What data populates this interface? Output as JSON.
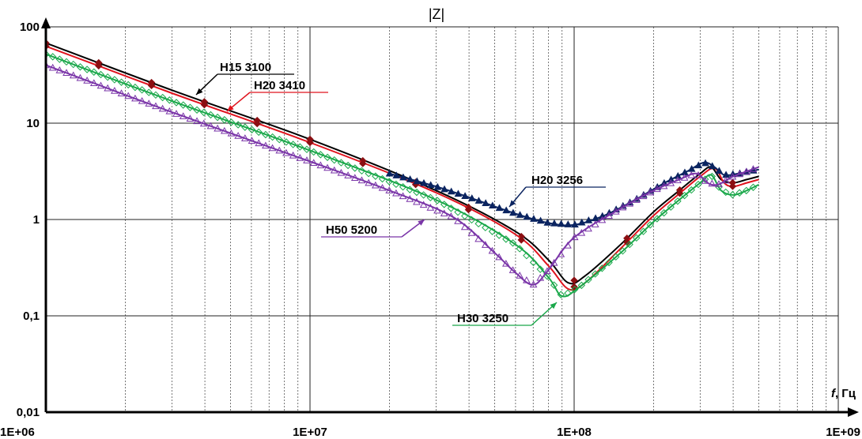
{
  "chart_data": {
    "type": "line",
    "title": "|Z|",
    "xlabel_italic": "f",
    "xlabel_rest": ", Гц",
    "ylabel": "",
    "x_scale": "log",
    "y_scale": "log",
    "xlim": [
      1000000,
      1000000000
    ],
    "ylim": [
      0.01,
      100
    ],
    "x_ticks": [
      {
        "value": 1000000,
        "label": "1E+06"
      },
      {
        "value": 10000000,
        "label": "1E+07"
      },
      {
        "value": 100000000,
        "label": "1E+08"
      },
      {
        "value": 1000000000,
        "label": "1E+09"
      }
    ],
    "y_ticks": [
      {
        "value": 0.01,
        "label": "0,01"
      },
      {
        "value": 0.1,
        "label": "0,1"
      },
      {
        "value": 1,
        "label": "1"
      },
      {
        "value": 10,
        "label": "10"
      },
      {
        "value": 100,
        "label": "100"
      }
    ],
    "grid": true,
    "series": [
      {
        "name": "H15 3100",
        "color": "#000000",
        "marker": "none",
        "x": [
          1000000,
          3000000,
          10000000,
          30000000,
          60000000,
          80000000,
          95000000,
          110000000,
          150000000,
          200000000,
          250000000,
          300000000,
          330000000,
          360000000,
          400000000,
          450000000,
          500000000
        ],
        "y": [
          68,
          22,
          6.8,
          2.0,
          0.75,
          0.38,
          0.22,
          0.26,
          0.55,
          1.2,
          2.0,
          3.0,
          3.5,
          2.6,
          2.4,
          2.6,
          2.8
        ]
      },
      {
        "name": "H20 3410",
        "color": "#e0141e",
        "marker": "none",
        "x": [
          1000000,
          3000000,
          10000000,
          30000000,
          60000000,
          80000000,
          95000000,
          110000000,
          150000000,
          200000000,
          250000000,
          300000000,
          340000000,
          370000000,
          400000000,
          450000000,
          500000000
        ],
        "y": [
          63,
          20.5,
          6.3,
          1.9,
          0.7,
          0.33,
          0.19,
          0.22,
          0.5,
          1.1,
          1.85,
          2.8,
          3.4,
          2.4,
          2.2,
          2.4,
          2.6
        ]
      },
      {
        "name": "H30 3250",
        "color": "#1aa84a",
        "marker": "diamond",
        "x": [
          1000000,
          3000000,
          10000000,
          30000000,
          60000000,
          80000000,
          90000000,
          105000000,
          150000000,
          200000000,
          250000000,
          300000000,
          330000000,
          360000000,
          400000000,
          450000000,
          500000000
        ],
        "y": [
          52,
          17,
          5.2,
          1.6,
          0.55,
          0.25,
          0.16,
          0.2,
          0.45,
          0.95,
          1.6,
          2.4,
          2.9,
          2.0,
          1.8,
          2.0,
          2.3
        ]
      },
      {
        "name": "H20 3256",
        "color": "#0b2460",
        "marker": "triangle",
        "x": [
          20000000,
          30000000,
          40000000,
          60000000,
          80000000,
          100000000,
          130000000,
          170000000,
          220000000,
          270000000,
          310000000,
          340000000,
          370000000,
          420000000,
          500000000
        ],
        "y": [
          3.0,
          2.2,
          1.7,
          1.15,
          0.92,
          0.88,
          1.1,
          1.6,
          2.4,
          3.2,
          3.9,
          3.5,
          2.9,
          3.0,
          3.3
        ]
      },
      {
        "name": "H50 5200",
        "color": "#7a35a8",
        "marker": "triangle-open",
        "x": [
          1000000,
          3000000,
          10000000,
          20000000,
          35000000,
          50000000,
          60000000,
          70000000,
          80000000,
          100000000,
          150000000,
          200000000,
          250000000,
          290000000,
          320000000,
          350000000,
          400000000,
          500000000
        ],
        "y": [
          40,
          13,
          4.0,
          2.0,
          1.05,
          0.45,
          0.28,
          0.21,
          0.3,
          0.65,
          1.3,
          2.0,
          2.6,
          3.0,
          2.4,
          2.3,
          2.8,
          3.5
        ]
      }
    ],
    "annotations": [
      {
        "text": "H15 3100",
        "series": 0
      },
      {
        "text": "H20 3410",
        "series": 1
      },
      {
        "text": "H20 3256",
        "series": 3
      },
      {
        "text": "H50 5200",
        "series": 4
      },
      {
        "text": "H30 3250",
        "series": 2
      }
    ]
  }
}
